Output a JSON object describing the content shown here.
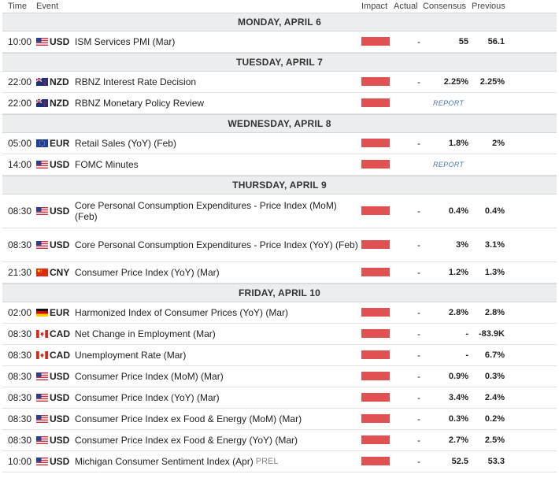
{
  "header": {
    "time": "Time",
    "event": "Event",
    "impact": "Impact",
    "actual": "Actual",
    "consensus": "Consensus",
    "previous": "Previous"
  },
  "colors": {
    "impact_high": "#e05252",
    "report_link": "#4a7ab8",
    "day_bg": "#ecedef"
  },
  "days": [
    {
      "label": "MONDAY, APRIL 6",
      "events": [
        {
          "time": "10:00",
          "flag": "us",
          "currency": "USD",
          "event": "ISM Services PMI (Mar)",
          "actual": "-",
          "consensus": "55",
          "previous": "56.1"
        }
      ]
    },
    {
      "label": "TUESDAY, APRIL 7",
      "events": [
        {
          "time": "22:00",
          "flag": "nz",
          "currency": "NZD",
          "event": "RBNZ Interest Rate Decision",
          "actual": "-",
          "consensus": "2.25%",
          "previous": "2.25%"
        },
        {
          "time": "22:00",
          "flag": "nz",
          "currency": "NZD",
          "event": "RBNZ Monetary Policy Review",
          "report": "REPORT"
        }
      ]
    },
    {
      "label": "WEDNESDAY, APRIL 8",
      "events": [
        {
          "time": "05:00",
          "flag": "eu",
          "currency": "EUR",
          "event": "Retail Sales (YoY) (Feb)",
          "actual": "-",
          "consensus": "1.8%",
          "previous": "2%"
        },
        {
          "time": "14:00",
          "flag": "us",
          "currency": "USD",
          "event": "FOMC Minutes",
          "report": "REPORT"
        }
      ]
    },
    {
      "label": "THURSDAY, APRIL 9",
      "events": [
        {
          "time": "08:30",
          "flag": "us",
          "currency": "USD",
          "event": "Core Personal Consumption Expenditures - Price Index (MoM) (Feb)",
          "actual": "-",
          "consensus": "0.4%",
          "previous": "0.4%",
          "tall": true
        },
        {
          "time": "08:30",
          "flag": "us",
          "currency": "USD",
          "event": "Core Personal Consumption Expenditures - Price Index (YoY) (Feb)",
          "actual": "-",
          "consensus": "3%",
          "previous": "3.1%",
          "tall": true
        },
        {
          "time": "21:30",
          "flag": "cn",
          "currency": "CNY",
          "event": "Consumer Price Index (YoY) (Mar)",
          "actual": "-",
          "consensus": "1.2%",
          "previous": "1.3%"
        }
      ]
    },
    {
      "label": "FRIDAY, APRIL 10",
      "events": [
        {
          "time": "02:00",
          "flag": "de",
          "currency": "EUR",
          "event": "Harmonized Index of Consumer Prices (YoY) (Mar)",
          "actual": "-",
          "consensus": "2.8%",
          "previous": "2.8%"
        },
        {
          "time": "08:30",
          "flag": "ca",
          "currency": "CAD",
          "event": "Net Change in Employment (Mar)",
          "actual": "-",
          "consensus": "-",
          "previous": "-83.9K"
        },
        {
          "time": "08:30",
          "flag": "ca",
          "currency": "CAD",
          "event": "Unemployment Rate (Mar)",
          "actual": "-",
          "consensus": "-",
          "previous": "6.7%"
        },
        {
          "time": "08:30",
          "flag": "us",
          "currency": "USD",
          "event": "Consumer Price Index (MoM) (Mar)",
          "actual": "-",
          "consensus": "0.9%",
          "previous": "0.3%"
        },
        {
          "time": "08:30",
          "flag": "us",
          "currency": "USD",
          "event": "Consumer Price Index (YoY) (Mar)",
          "actual": "-",
          "consensus": "3.4%",
          "previous": "2.4%"
        },
        {
          "time": "08:30",
          "flag": "us",
          "currency": "USD",
          "event": "Consumer Price Index ex Food & Energy (MoM) (Mar)",
          "actual": "-",
          "consensus": "0.3%",
          "previous": "0.2%"
        },
        {
          "time": "08:30",
          "flag": "us",
          "currency": "USD",
          "event": "Consumer Price Index ex Food & Energy (YoY) (Mar)",
          "actual": "-",
          "consensus": "2.7%",
          "previous": "2.5%"
        },
        {
          "time": "10:00",
          "flag": "us",
          "currency": "USD",
          "event": "Michigan Consumer Sentiment Index (Apr)",
          "tag": "PREL",
          "actual": "-",
          "consensus": "52.5",
          "previous": "53.3"
        }
      ]
    }
  ]
}
